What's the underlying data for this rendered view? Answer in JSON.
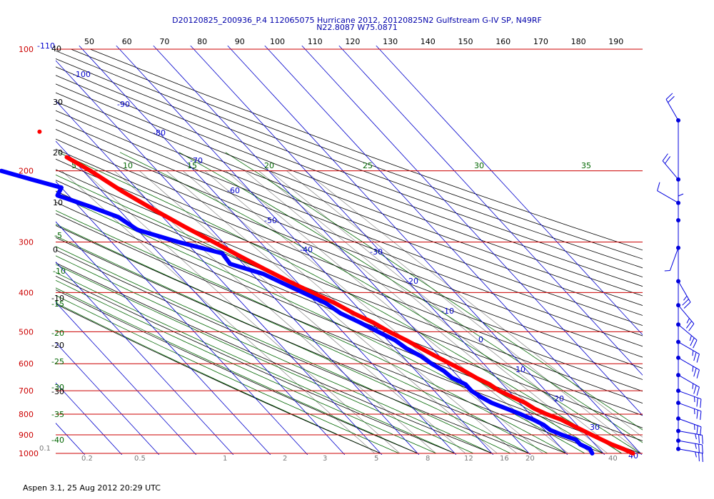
{
  "header": {
    "title_line1": "D20120825_200936_P.4 112065075 Hurricane 2012, 20120825N2 Gulfstream G-IV SP, N49RF",
    "title_line2": "N22.8087 W75.0871"
  },
  "footer": {
    "software": "Aspen 3.1, 25 Aug 2012  20:29 UTC"
  },
  "colors": {
    "isobar": "#cc0000",
    "isotherm": "#0000cc",
    "dry_adiabat": "#000000",
    "moist_adiabat": "#006600",
    "mixing_ratio": "#888888",
    "temperature": "#ff0000",
    "dewpoint": "#0000ff",
    "wind": "#0000dd"
  },
  "chart_data": {
    "type": "skew-t log-p",
    "title": "D20120825_200936_P.4 112065075 Hurricane 2012, 20120825N2 Gulfstream G-IV SP, N49RF",
    "subtitle": "N22.8087 W75.0871",
    "pressure_levels_hPa": [
      100,
      200,
      300,
      400,
      500,
      600,
      700,
      800,
      900,
      1000
    ],
    "pressure_range_hPa": [
      100,
      1000
    ],
    "top_scale_labels": [
      "50",
      "60",
      "70",
      "80",
      "90",
      "100",
      "110",
      "120",
      "130",
      "140",
      "150",
      "160",
      "170",
      "180",
      "190"
    ],
    "isotherm_labels_C": [
      "-110",
      "-100",
      "-90",
      "-80",
      "-70",
      "-60",
      "-50",
      "-40",
      "-30",
      "-20",
      "-10",
      "0",
      "10",
      "20",
      "30",
      "40"
    ],
    "dry_adiabat_labels": [
      "40",
      "30",
      "20",
      "10",
      "0",
      "-10",
      "-20",
      "-30"
    ],
    "moist_adiabat_labels": [
      "5",
      "10",
      "15",
      "20",
      "25",
      "30",
      "35",
      "0",
      "-5",
      "-10",
      "-15",
      "-20",
      "-25",
      "-30",
      "-35",
      "-40"
    ],
    "mixing_ratio_labels": [
      "0.1",
      "0.2",
      "0.5",
      "1",
      "2",
      "3",
      "5",
      "8",
      "12",
      "16",
      "20",
      "40"
    ],
    "temperature_profile": [
      {
        "p": 185,
        "t": -51.0
      },
      {
        "p": 200,
        "t": -48.0
      },
      {
        "p": 225,
        "t": -44.5
      },
      {
        "p": 250,
        "t": -40.5
      },
      {
        "p": 275,
        "t": -36.5
      },
      {
        "p": 300,
        "t": -32.5
      },
      {
        "p": 325,
        "t": -29.0
      },
      {
        "p": 350,
        "t": -25.5
      },
      {
        "p": 375,
        "t": -22.0
      },
      {
        "p": 400,
        "t": -18.5
      },
      {
        "p": 425,
        "t": -15.0
      },
      {
        "p": 450,
        "t": -12.5
      },
      {
        "p": 475,
        "t": -9.5
      },
      {
        "p": 500,
        "t": -7.5
      },
      {
        "p": 525,
        "t": -5.0
      },
      {
        "p": 550,
        "t": -3.0
      },
      {
        "p": 575,
        "t": -1.0
      },
      {
        "p": 600,
        "t": 1.0
      },
      {
        "p": 625,
        "t": 3.0
      },
      {
        "p": 650,
        "t": 4.5
      },
      {
        "p": 675,
        "t": 6.5
      },
      {
        "p": 700,
        "t": 7.5
      },
      {
        "p": 725,
        "t": 9.5
      },
      {
        "p": 750,
        "t": 11.5
      },
      {
        "p": 775,
        "t": 12.5
      },
      {
        "p": 800,
        "t": 14.5
      },
      {
        "p": 825,
        "t": 17.0
      },
      {
        "p": 850,
        "t": 18.5
      },
      {
        "p": 875,
        "t": 20.0
      },
      {
        "p": 900,
        "t": 21.5
      },
      {
        "p": 925,
        "t": 23.0
      },
      {
        "p": 950,
        "t": 24.5
      },
      {
        "p": 975,
        "t": 26.5
      },
      {
        "p": 1000,
        "t": 28.0
      }
    ],
    "dewpoint_profile": [
      {
        "p": 200,
        "t": -72.0
      },
      {
        "p": 210,
        "t": -66.0
      },
      {
        "p": 220,
        "t": -60.0
      },
      {
        "p": 230,
        "t": -63.0
      },
      {
        "p": 245,
        "t": -57.0
      },
      {
        "p": 260,
        "t": -52.0
      },
      {
        "p": 280,
        "t": -50.0
      },
      {
        "p": 300,
        "t": -42.0
      },
      {
        "p": 320,
        "t": -33.0
      },
      {
        "p": 340,
        "t": -33.5
      },
      {
        "p": 360,
        "t": -27.0
      },
      {
        "p": 380,
        "t": -24.0
      },
      {
        "p": 400,
        "t": -21.0
      },
      {
        "p": 425,
        "t": -17.5
      },
      {
        "p": 450,
        "t": -16.0
      },
      {
        "p": 475,
        "t": -13.0
      },
      {
        "p": 500,
        "t": -10.5
      },
      {
        "p": 525,
        "t": -8.0
      },
      {
        "p": 550,
        "t": -7.0
      },
      {
        "p": 575,
        "t": -5.0
      },
      {
        "p": 600,
        "t": -4.0
      },
      {
        "p": 625,
        "t": -2.5
      },
      {
        "p": 650,
        "t": -2.0
      },
      {
        "p": 675,
        "t": 0.0
      },
      {
        "p": 700,
        "t": 0.0
      },
      {
        "p": 725,
        "t": 1.0
      },
      {
        "p": 750,
        "t": 2.5
      },
      {
        "p": 775,
        "t": 5.0
      },
      {
        "p": 800,
        "t": 7.5
      },
      {
        "p": 825,
        "t": 9.5
      },
      {
        "p": 850,
        "t": 11.0
      },
      {
        "p": 875,
        "t": 11.5
      },
      {
        "p": 900,
        "t": 13.5
      },
      {
        "p": 925,
        "t": 16.0
      },
      {
        "p": 950,
        "t": 16.0
      },
      {
        "p": 975,
        "t": 17.5
      },
      {
        "p": 1000,
        "t": 17.0
      }
    ],
    "isolated_point": {
      "p": 160,
      "t": -52.0
    },
    "wind_profile": [
      {
        "p": 150,
        "speed_kt": 20,
        "dir_deg": 330
      },
      {
        "p": 210,
        "speed_kt": 20,
        "dir_deg": 320
      },
      {
        "p": 240,
        "speed_kt": 10,
        "dir_deg": 300
      },
      {
        "p": 265,
        "speed_kt": 5,
        "dir_deg": 0
      },
      {
        "p": 310,
        "speed_kt": 5,
        "dir_deg": 200
      },
      {
        "p": 375,
        "speed_kt": 25,
        "dir_deg": 150
      },
      {
        "p": 430,
        "speed_kt": 25,
        "dir_deg": 140
      },
      {
        "p": 480,
        "speed_kt": 25,
        "dir_deg": 130
      },
      {
        "p": 530,
        "speed_kt": 25,
        "dir_deg": 120
      },
      {
        "p": 580,
        "speed_kt": 25,
        "dir_deg": 120
      },
      {
        "p": 640,
        "speed_kt": 25,
        "dir_deg": 120
      },
      {
        "p": 700,
        "speed_kt": 25,
        "dir_deg": 110
      },
      {
        "p": 750,
        "speed_kt": 25,
        "dir_deg": 110
      },
      {
        "p": 820,
        "speed_kt": 25,
        "dir_deg": 110
      },
      {
        "p": 880,
        "speed_kt": 25,
        "dir_deg": 100
      },
      {
        "p": 930,
        "speed_kt": 25,
        "dir_deg": 100
      },
      {
        "p": 975,
        "speed_kt": 25,
        "dir_deg": 100
      }
    ]
  }
}
